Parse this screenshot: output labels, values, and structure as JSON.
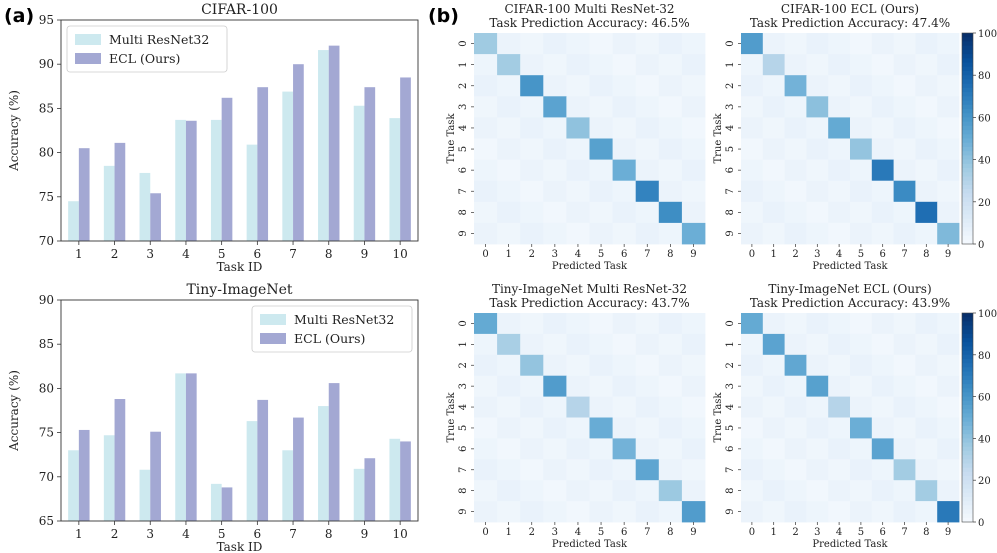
{
  "panel_labels": [
    "(a)",
    "(b)"
  ],
  "chart_data": [
    {
      "type": "bar",
      "title": "CIFAR-100",
      "xlabel": "Task ID",
      "ylabel": "Accuracy (%)",
      "ylim": [
        70,
        95
      ],
      "yticks": [
        70,
        75,
        80,
        85,
        90,
        95
      ],
      "legend_position": "top-left",
      "categories": [
        "1",
        "2",
        "3",
        "4",
        "5",
        "6",
        "7",
        "8",
        "9",
        "10"
      ],
      "series": [
        {
          "name": "Multi ResNet32",
          "color": "#cde9ef",
          "values": [
            74.5,
            78.5,
            77.7,
            83.7,
            83.7,
            80.9,
            86.9,
            91.6,
            85.3,
            83.9
          ]
        },
        {
          "name": "ECL (Ours)",
          "color": "#a3a8d3",
          "values": [
            80.5,
            81.1,
            75.4,
            83.6,
            86.2,
            87.4,
            90.0,
            92.1,
            87.4,
            88.5
          ]
        }
      ]
    },
    {
      "type": "bar",
      "title": "Tiny-ImageNet",
      "xlabel": "Task ID",
      "ylabel": "Accuracy (%)",
      "ylim": [
        65,
        90
      ],
      "yticks": [
        65,
        70,
        75,
        80,
        85,
        90
      ],
      "legend_position": "top-right",
      "categories": [
        "1",
        "2",
        "3",
        "4",
        "5",
        "6",
        "7",
        "8",
        "9",
        "10"
      ],
      "series": [
        {
          "name": "Multi ResNet32",
          "color": "#cde9ef",
          "values": [
            73.0,
            74.7,
            70.8,
            81.7,
            69.2,
            76.3,
            73.0,
            78.0,
            70.9,
            74.3
          ]
        },
        {
          "name": "ECL (Ours)",
          "color": "#a3a8d3",
          "values": [
            75.3,
            78.8,
            75.1,
            81.7,
            68.8,
            78.7,
            76.7,
            80.6,
            72.1,
            74.0
          ]
        }
      ]
    },
    {
      "type": "heatmap",
      "title": "CIFAR-100 Multi ResNet-32\nTask Prediction Accuracy: 46.5%",
      "xlabel": "Predicted Task",
      "ylabel": "True Task",
      "x": [
        "0",
        "1",
        "2",
        "3",
        "4",
        "5",
        "6",
        "7",
        "8",
        "9"
      ],
      "y": [
        "0",
        "1",
        "2",
        "3",
        "4",
        "5",
        "6",
        "7",
        "8",
        "9"
      ],
      "diagonal": [
        37,
        36,
        61,
        55,
        41,
        56,
        50,
        68,
        64,
        50
      ],
      "off_diagonal_level": 5,
      "colorbar": false
    },
    {
      "type": "heatmap",
      "title": "CIFAR-100 ECL (Ours)\nTask Prediction Accuracy: 47.4%",
      "xlabel": "Predicted Task",
      "ylabel": "True Task",
      "x": [
        "0",
        "1",
        "2",
        "3",
        "4",
        "5",
        "6",
        "7",
        "8",
        "9"
      ],
      "y": [
        "0",
        "1",
        "2",
        "3",
        "4",
        "5",
        "6",
        "7",
        "8",
        "9"
      ],
      "diagonal": [
        58,
        30,
        48,
        42,
        52,
        40,
        72,
        65,
        76,
        45
      ],
      "off_diagonal_level": 5,
      "colorbar": true,
      "colorbar_range": [
        0,
        100
      ],
      "colorbar_ticks": [
        0,
        20,
        40,
        60,
        80,
        100
      ]
    },
    {
      "type": "heatmap",
      "title": "Tiny-ImageNet Multi ResNet-32\nTask Prediction Accuracy: 43.7%",
      "xlabel": "Predicted Task",
      "ylabel": "True Task",
      "x": [
        "0",
        "1",
        "2",
        "3",
        "4",
        "5",
        "6",
        "7",
        "8",
        "9"
      ],
      "y": [
        "0",
        "1",
        "2",
        "3",
        "4",
        "5",
        "6",
        "7",
        "8",
        "9"
      ],
      "diagonal": [
        52,
        34,
        40,
        58,
        30,
        51,
        48,
        54,
        38,
        58
      ],
      "off_diagonal_level": 5,
      "colorbar": false
    },
    {
      "type": "heatmap",
      "title": "Tiny-ImageNet ECL (Ours)\nTask Prediction Accuracy: 43.9%",
      "xlabel": "Predicted Task",
      "ylabel": "True Task",
      "x": [
        "0",
        "1",
        "2",
        "3",
        "4",
        "5",
        "6",
        "7",
        "8",
        "9"
      ],
      "y": [
        "0",
        "1",
        "2",
        "3",
        "4",
        "5",
        "6",
        "7",
        "8",
        "9"
      ],
      "diagonal": [
        52,
        55,
        53,
        56,
        30,
        50,
        55,
        36,
        36,
        72
      ],
      "off_diagonal_level": 5,
      "colorbar": true,
      "colorbar_range": [
        0,
        100
      ],
      "colorbar_ticks": [
        0,
        20,
        40,
        60,
        80,
        100
      ]
    }
  ]
}
